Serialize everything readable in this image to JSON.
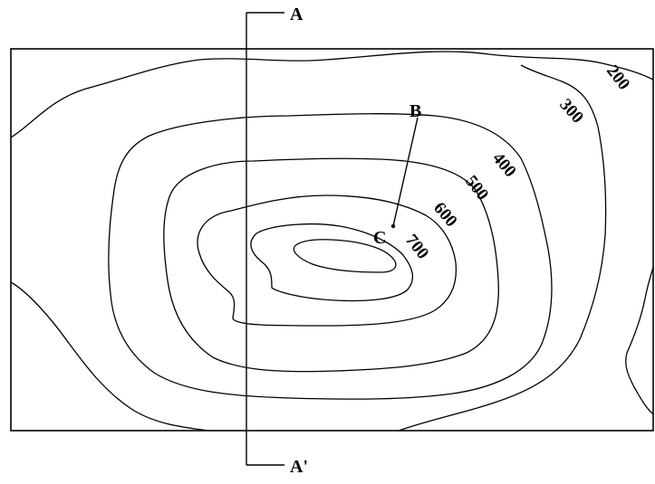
{
  "map": {
    "section_line": {
      "start_label": "A",
      "end_label": "A'"
    },
    "points": {
      "b": "B",
      "c": "C"
    },
    "contour_labels": [
      "200",
      "300",
      "400",
      "500",
      "600",
      "700"
    ]
  }
}
